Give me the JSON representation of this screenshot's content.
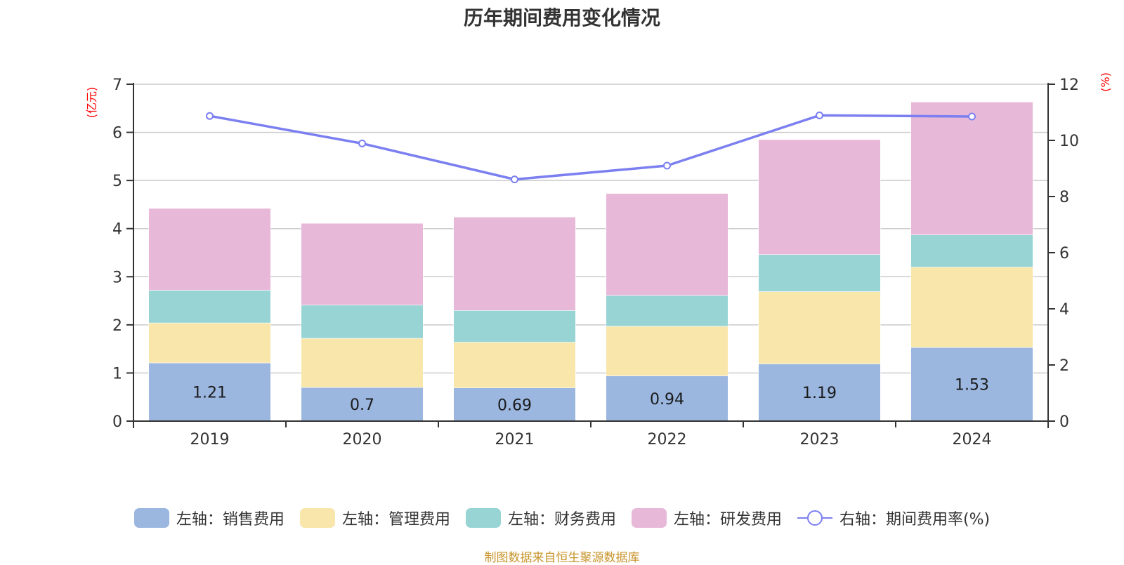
{
  "title": "历年期间费用变化情况",
  "footer": "制图数据来自恒生聚源数据库",
  "chart_data": {
    "type": "bar",
    "stacked": true,
    "title": "历年期间费用变化情况",
    "categories": [
      "2019",
      "2020",
      "2021",
      "2022",
      "2023",
      "2024"
    ],
    "left_axis": {
      "unit_label": "(亿元)",
      "ylim": [
        0,
        7
      ],
      "ticks": [
        "0",
        "1",
        "2",
        "3",
        "4",
        "5",
        "6",
        "7"
      ]
    },
    "right_axis": {
      "unit_label": "(%)",
      "ylim": [
        0,
        12
      ],
      "ticks": [
        "0",
        "2",
        "4",
        "6",
        "8",
        "10",
        "12"
      ]
    },
    "grid": true,
    "legend_position": "bottom",
    "series": [
      {
        "name": "左轴：销售费用",
        "type": "bar",
        "axis": "left",
        "color": "#9bb7e0",
        "values": [
          1.21,
          0.7,
          0.69,
          0.94,
          1.19,
          1.53
        ],
        "show_labels": true,
        "labels": [
          "1.21",
          "0.7",
          "0.69",
          "0.94",
          "1.19",
          "1.53"
        ]
      },
      {
        "name": "左轴：管理费用",
        "type": "bar",
        "axis": "left",
        "color": "#f8e6aa",
        "values": [
          0.83,
          1.02,
          0.95,
          1.03,
          1.5,
          1.67
        ]
      },
      {
        "name": "左轴：财务费用",
        "type": "bar",
        "axis": "left",
        "color": "#98d4d4",
        "values": [
          0.68,
          0.69,
          0.66,
          0.64,
          0.77,
          0.67
        ]
      },
      {
        "name": "左轴：研发费用",
        "type": "bar",
        "axis": "left",
        "color": "#e7b8d8",
        "values": [
          1.7,
          1.7,
          1.94,
          2.12,
          2.39,
          2.76
        ]
      },
      {
        "name": "右轴：期间费用率(%)",
        "type": "line",
        "axis": "right",
        "color": "#7b7ff0",
        "values": [
          10.87,
          9.89,
          8.61,
          9.1,
          10.89,
          10.85
        ]
      }
    ]
  }
}
